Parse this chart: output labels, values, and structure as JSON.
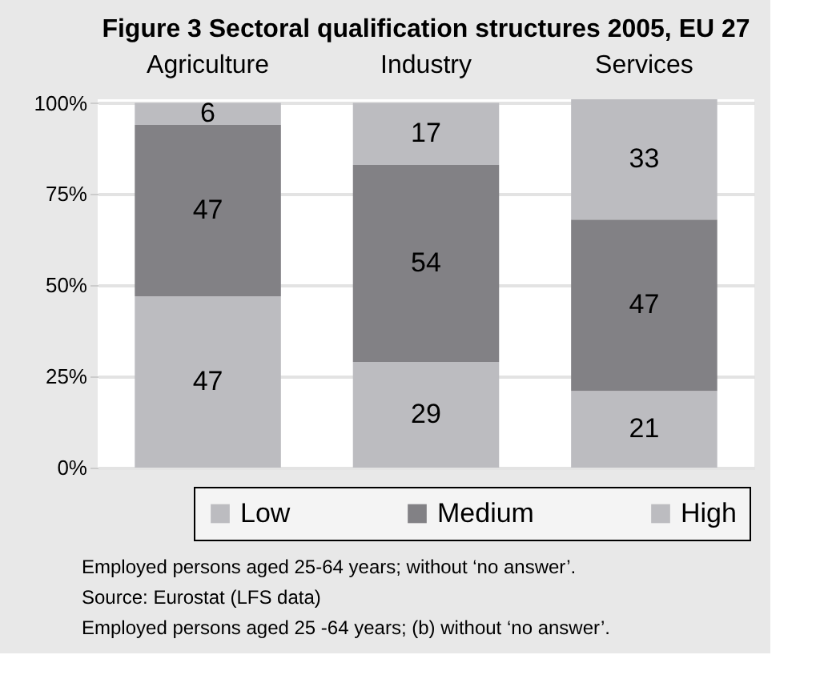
{
  "chart_data": {
    "type": "bar",
    "stacked": true,
    "title": "Figure 3 Sectoral qualification structures 2005, EU 27",
    "categories": [
      "Agriculture",
      "Industry",
      "Services"
    ],
    "series": [
      {
        "name": "Low",
        "color": "#bcbcc0",
        "values": [
          47,
          29,
          21
        ]
      },
      {
        "name": "Medium",
        "color": "#828185",
        "values": [
          47,
          54,
          47
        ]
      },
      {
        "name": "High",
        "color": "#bcbcc0",
        "values": [
          6,
          17,
          33
        ]
      }
    ],
    "ylim": [
      0,
      101
    ],
    "yticks": [
      {
        "value": 0,
        "label": "0%"
      },
      {
        "value": 25,
        "label": "25%"
      },
      {
        "value": 50,
        "label": "50%"
      },
      {
        "value": 75,
        "label": "75%"
      },
      {
        "value": 100,
        "label": "100%"
      }
    ],
    "grid": "y",
    "legend": "bottom",
    "data_labels": true,
    "annotations": [
      "Employed persons aged 25-64 years; without ‘no answer’.",
      "Source: Eurostat (LFS data)",
      "Employed persons aged 25  -64 years; (b) without ‘no answer’."
    ]
  }
}
